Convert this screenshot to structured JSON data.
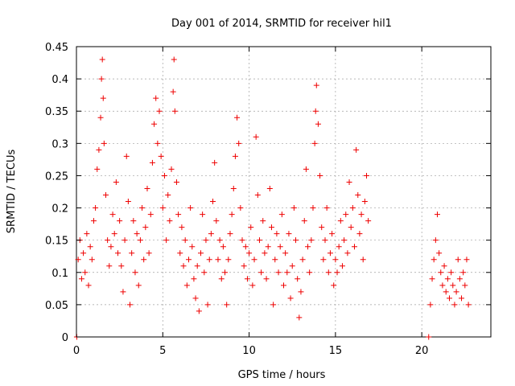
{
  "chart_data": {
    "type": "scatter",
    "title": "Day 001 of 2014, SRMTID for receiver hil1",
    "xlabel": "GPS time / hours",
    "ylabel": "SRMTID / TECUs",
    "xlim": [
      0,
      24
    ],
    "ylim": [
      0,
      0.45
    ],
    "xticks": [
      0,
      5,
      10,
      15,
      20
    ],
    "xtick_labels": [
      "0",
      "5",
      "10",
      "15",
      "20"
    ],
    "yticks": [
      0,
      0.05,
      0.1,
      0.15,
      0.2,
      0.25,
      0.3,
      0.35,
      0.4,
      0.45
    ],
    "ytick_labels": [
      "0",
      "0.05",
      "0.1",
      "0.15",
      "0.2",
      "0.25",
      "0.3",
      "0.35",
      "0.4",
      "0.45"
    ],
    "grid": true,
    "marker": "+",
    "color": "#ee0000",
    "series": [
      {
        "name": "hil1",
        "points": [
          [
            0.02,
            0.0
          ],
          [
            0.1,
            0.12
          ],
          [
            0.2,
            0.15
          ],
          [
            0.3,
            0.09
          ],
          [
            0.4,
            0.13
          ],
          [
            0.5,
            0.1
          ],
          [
            0.6,
            0.16
          ],
          [
            0.7,
            0.08
          ],
          [
            0.8,
            0.14
          ],
          [
            0.9,
            0.12
          ],
          [
            1.0,
            0.18
          ],
          [
            1.1,
            0.2
          ],
          [
            1.2,
            0.26
          ],
          [
            1.3,
            0.29
          ],
          [
            1.4,
            0.34
          ],
          [
            1.45,
            0.4
          ],
          [
            1.5,
            0.43
          ],
          [
            1.55,
            0.37
          ],
          [
            1.6,
            0.3
          ],
          [
            1.7,
            0.22
          ],
          [
            1.8,
            0.15
          ],
          [
            1.9,
            0.11
          ],
          [
            2.0,
            0.14
          ],
          [
            2.1,
            0.19
          ],
          [
            2.2,
            0.16
          ],
          [
            2.3,
            0.24
          ],
          [
            2.4,
            0.13
          ],
          [
            2.5,
            0.18
          ],
          [
            2.6,
            0.11
          ],
          [
            2.7,
            0.07
          ],
          [
            2.8,
            0.15
          ],
          [
            2.9,
            0.28
          ],
          [
            3.0,
            0.21
          ],
          [
            3.1,
            0.05
          ],
          [
            3.2,
            0.13
          ],
          [
            3.3,
            0.18
          ],
          [
            3.4,
            0.1
          ],
          [
            3.5,
            0.16
          ],
          [
            3.6,
            0.08
          ],
          [
            3.7,
            0.15
          ],
          [
            3.8,
            0.2
          ],
          [
            3.9,
            0.12
          ],
          [
            4.0,
            0.17
          ],
          [
            4.1,
            0.23
          ],
          [
            4.2,
            0.13
          ],
          [
            4.3,
            0.19
          ],
          [
            4.4,
            0.27
          ],
          [
            4.5,
            0.33
          ],
          [
            4.6,
            0.37
          ],
          [
            4.7,
            0.3
          ],
          [
            4.8,
            0.35
          ],
          [
            4.9,
            0.28
          ],
          [
            5.0,
            0.2
          ],
          [
            5.1,
            0.25
          ],
          [
            5.2,
            0.15
          ],
          [
            5.3,
            0.22
          ],
          [
            5.4,
            0.18
          ],
          [
            5.5,
            0.26
          ],
          [
            5.6,
            0.38
          ],
          [
            5.65,
            0.43
          ],
          [
            5.7,
            0.35
          ],
          [
            5.8,
            0.24
          ],
          [
            5.9,
            0.19
          ],
          [
            6.0,
            0.13
          ],
          [
            6.1,
            0.17
          ],
          [
            6.2,
            0.11
          ],
          [
            6.3,
            0.15
          ],
          [
            6.4,
            0.08
          ],
          [
            6.5,
            0.12
          ],
          [
            6.6,
            0.2
          ],
          [
            6.7,
            0.14
          ],
          [
            6.8,
            0.09
          ],
          [
            6.9,
            0.06
          ],
          [
            7.0,
            0.11
          ],
          [
            7.1,
            0.04
          ],
          [
            7.2,
            0.13
          ],
          [
            7.3,
            0.19
          ],
          [
            7.4,
            0.1
          ],
          [
            7.5,
            0.15
          ],
          [
            7.6,
            0.05
          ],
          [
            7.7,
            0.12
          ],
          [
            7.8,
            0.16
          ],
          [
            7.9,
            0.21
          ],
          [
            8.0,
            0.27
          ],
          [
            8.1,
            0.18
          ],
          [
            8.2,
            0.12
          ],
          [
            8.3,
            0.15
          ],
          [
            8.4,
            0.09
          ],
          [
            8.5,
            0.14
          ],
          [
            8.6,
            0.1
          ],
          [
            8.7,
            0.05
          ],
          [
            8.8,
            0.12
          ],
          [
            8.9,
            0.16
          ],
          [
            9.0,
            0.19
          ],
          [
            9.1,
            0.23
          ],
          [
            9.2,
            0.28
          ],
          [
            9.3,
            0.34
          ],
          [
            9.4,
            0.3
          ],
          [
            9.5,
            0.2
          ],
          [
            9.6,
            0.15
          ],
          [
            9.7,
            0.11
          ],
          [
            9.8,
            0.14
          ],
          [
            9.9,
            0.09
          ],
          [
            10.0,
            0.13
          ],
          [
            10.1,
            0.17
          ],
          [
            10.2,
            0.08
          ],
          [
            10.3,
            0.12
          ],
          [
            10.4,
            0.31
          ],
          [
            10.5,
            0.22
          ],
          [
            10.6,
            0.15
          ],
          [
            10.7,
            0.1
          ],
          [
            10.8,
            0.18
          ],
          [
            10.9,
            0.13
          ],
          [
            11.0,
            0.09
          ],
          [
            11.1,
            0.14
          ],
          [
            11.2,
            0.23
          ],
          [
            11.3,
            0.17
          ],
          [
            11.4,
            0.05
          ],
          [
            11.5,
            0.12
          ],
          [
            11.6,
            0.16
          ],
          [
            11.7,
            0.1
          ],
          [
            11.8,
            0.14
          ],
          [
            11.9,
            0.19
          ],
          [
            12.0,
            0.08
          ],
          [
            12.1,
            0.13
          ],
          [
            12.2,
            0.1
          ],
          [
            12.3,
            0.16
          ],
          [
            12.4,
            0.06
          ],
          [
            12.5,
            0.11
          ],
          [
            12.6,
            0.2
          ],
          [
            12.7,
            0.15
          ],
          [
            12.8,
            0.09
          ],
          [
            12.9,
            0.03
          ],
          [
            13.0,
            0.07
          ],
          [
            13.1,
            0.12
          ],
          [
            13.2,
            0.18
          ],
          [
            13.3,
            0.26
          ],
          [
            13.4,
            0.14
          ],
          [
            13.5,
            0.1
          ],
          [
            13.6,
            0.15
          ],
          [
            13.7,
            0.2
          ],
          [
            13.8,
            0.3
          ],
          [
            13.85,
            0.35
          ],
          [
            13.9,
            0.39
          ],
          [
            14.0,
            0.33
          ],
          [
            14.1,
            0.25
          ],
          [
            14.2,
            0.17
          ],
          [
            14.3,
            0.12
          ],
          [
            14.4,
            0.15
          ],
          [
            14.5,
            0.2
          ],
          [
            14.6,
            0.1
          ],
          [
            14.7,
            0.13
          ],
          [
            14.8,
            0.16
          ],
          [
            14.9,
            0.08
          ],
          [
            15.0,
            0.12
          ],
          [
            15.1,
            0.1
          ],
          [
            15.2,
            0.14
          ],
          [
            15.3,
            0.18
          ],
          [
            15.4,
            0.11
          ],
          [
            15.5,
            0.15
          ],
          [
            15.6,
            0.19
          ],
          [
            15.7,
            0.13
          ],
          [
            15.8,
            0.24
          ],
          [
            15.9,
            0.17
          ],
          [
            16.0,
            0.2
          ],
          [
            16.1,
            0.14
          ],
          [
            16.2,
            0.29
          ],
          [
            16.3,
            0.22
          ],
          [
            16.4,
            0.16
          ],
          [
            16.5,
            0.19
          ],
          [
            16.6,
            0.12
          ],
          [
            16.7,
            0.21
          ],
          [
            16.8,
            0.25
          ],
          [
            16.9,
            0.18
          ],
          [
            20.4,
            0.0
          ],
          [
            20.5,
            0.05
          ],
          [
            20.6,
            0.09
          ],
          [
            20.7,
            0.12
          ],
          [
            20.8,
            0.15
          ],
          [
            20.9,
            0.19
          ],
          [
            21.0,
            0.13
          ],
          [
            21.1,
            0.1
          ],
          [
            21.2,
            0.08
          ],
          [
            21.3,
            0.11
          ],
          [
            21.4,
            0.07
          ],
          [
            21.5,
            0.09
          ],
          [
            21.6,
            0.06
          ],
          [
            21.7,
            0.1
          ],
          [
            21.8,
            0.08
          ],
          [
            21.9,
            0.05
          ],
          [
            22.0,
            0.07
          ],
          [
            22.1,
            0.12
          ],
          [
            22.2,
            0.09
          ],
          [
            22.3,
            0.06
          ],
          [
            22.4,
            0.1
          ],
          [
            22.5,
            0.08
          ],
          [
            22.6,
            0.12
          ],
          [
            22.7,
            0.05
          ]
        ]
      }
    ]
  }
}
